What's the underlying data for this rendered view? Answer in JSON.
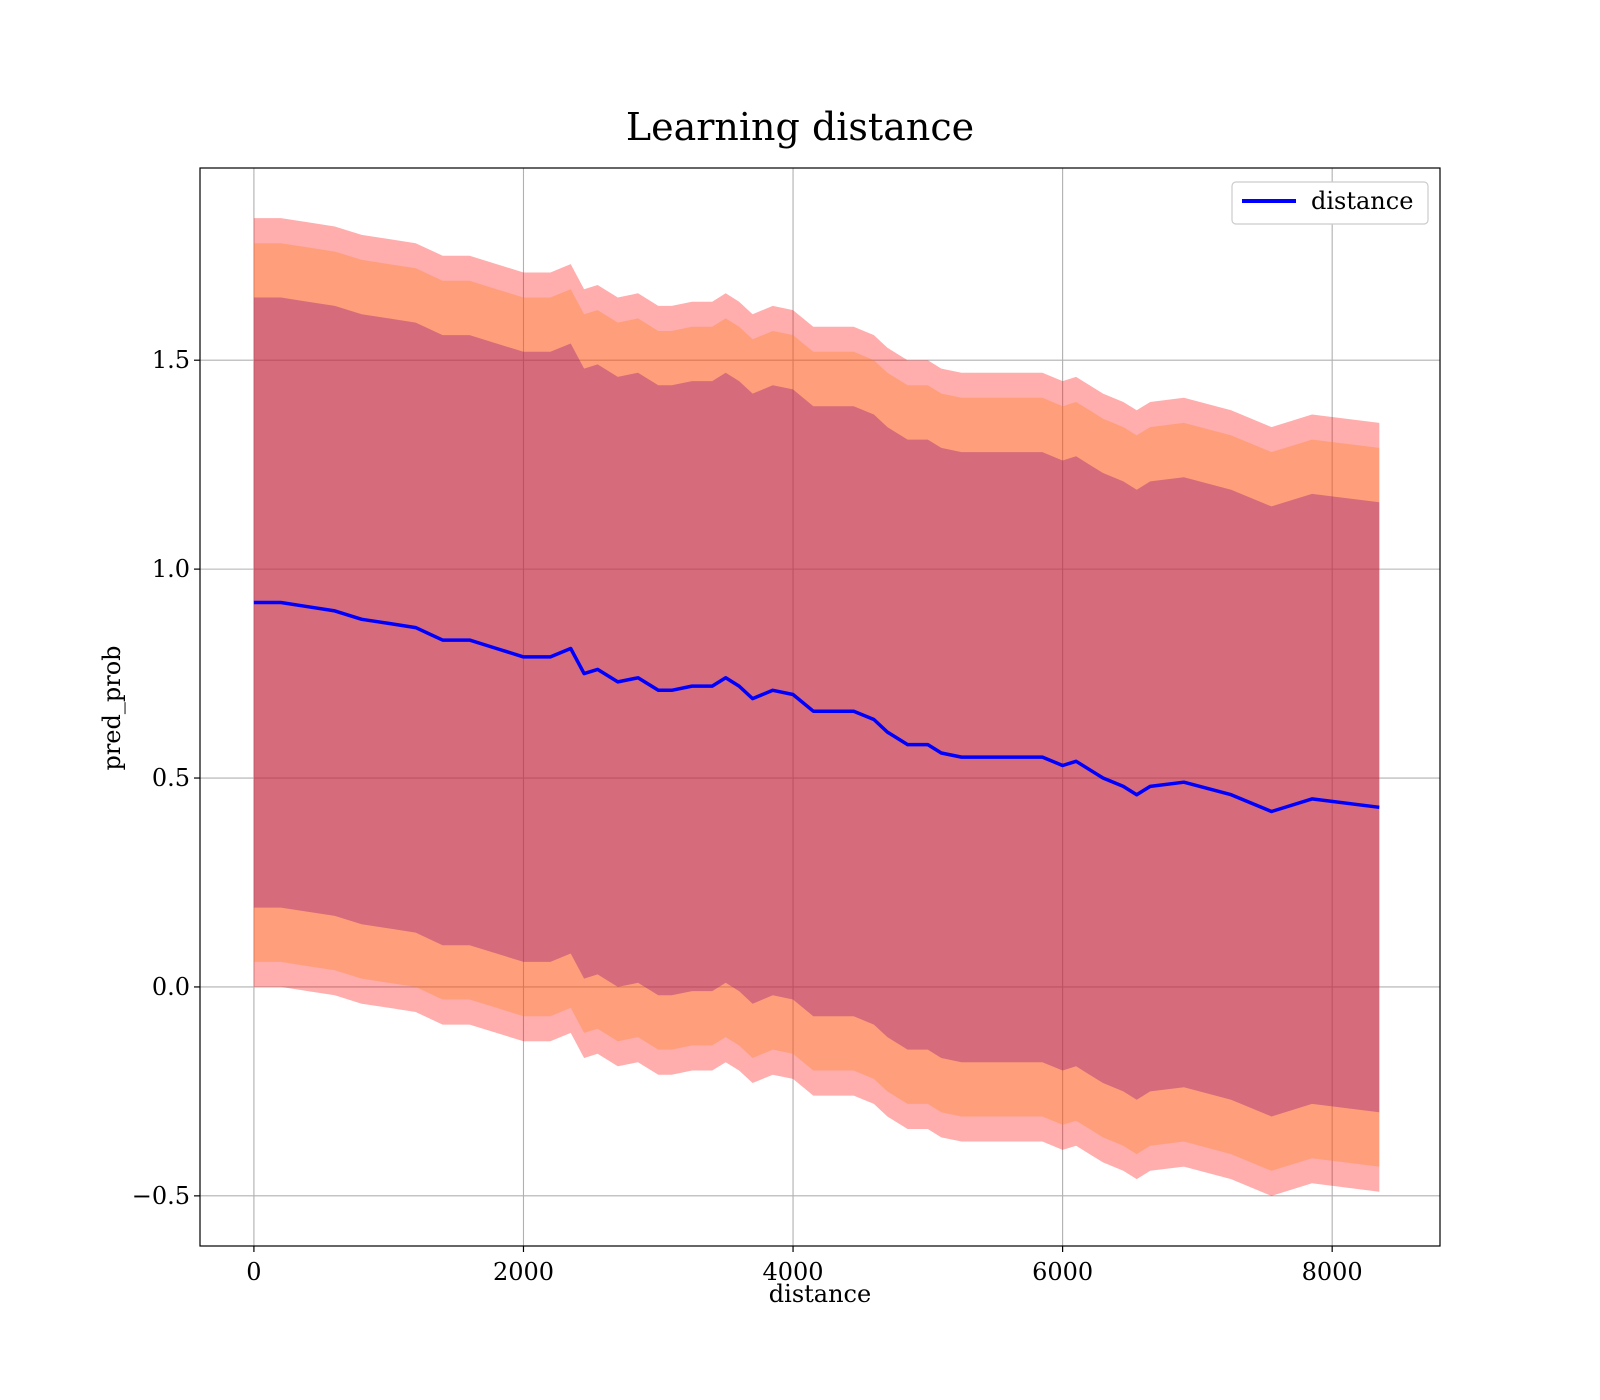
{
  "chart_data": {
    "type": "line",
    "title": "Learning distance",
    "xlabel": "distance",
    "ylabel": "pred_prob",
    "xlim": [
      -400,
      8800
    ],
    "ylim": [
      -0.62,
      1.96
    ],
    "xticks": [
      0,
      2000,
      4000,
      6000,
      8000
    ],
    "xtick_labels": [
      "0",
      "2000",
      "4000",
      "6000",
      "8000"
    ],
    "yticks": [
      -0.5,
      0.0,
      0.5,
      1.0,
      1.5
    ],
    "ytick_labels": [
      "−0.5",
      "0.0",
      "0.5",
      "1.0",
      "1.5"
    ],
    "grid": true,
    "legend": {
      "position": "upper-right",
      "entries": [
        "distance"
      ]
    },
    "colors": {
      "line": "#0000ff",
      "band_outer": "#ff0000",
      "band_middle": "#ff7f0e",
      "band_inner": "#800080"
    },
    "series": [
      {
        "name": "distance",
        "x": [
          0,
          200,
          400,
          600,
          800,
          1000,
          1200,
          1400,
          1600,
          1800,
          2000,
          2200,
          2350,
          2450,
          2550,
          2700,
          2850,
          3000,
          3100,
          3250,
          3400,
          3500,
          3600,
          3700,
          3850,
          4000,
          4150,
          4300,
          4450,
          4600,
          4700,
          4850,
          5000,
          5100,
          5250,
          5400,
          5550,
          5700,
          5850,
          6000,
          6100,
          6200,
          6300,
          6450,
          6550,
          6650,
          6900,
          7250,
          7550,
          7850,
          8350
        ],
        "y": [
          0.92,
          0.92,
          0.91,
          0.9,
          0.88,
          0.87,
          0.86,
          0.83,
          0.83,
          0.81,
          0.79,
          0.79,
          0.81,
          0.75,
          0.76,
          0.73,
          0.74,
          0.71,
          0.71,
          0.72,
          0.72,
          0.74,
          0.72,
          0.69,
          0.71,
          0.7,
          0.66,
          0.66,
          0.66,
          0.64,
          0.61,
          0.58,
          0.58,
          0.56,
          0.55,
          0.55,
          0.55,
          0.55,
          0.55,
          0.53,
          0.54,
          0.52,
          0.5,
          0.48,
          0.46,
          0.48,
          0.49,
          0.46,
          0.42,
          0.45,
          0.43
        ]
      }
    ],
    "bands": [
      {
        "color": "band_outer",
        "half_width": 0.92
      },
      {
        "color": "band_middle",
        "half_width": 0.86
      },
      {
        "color": "band_inner",
        "half_width": 0.73
      }
    ]
  }
}
